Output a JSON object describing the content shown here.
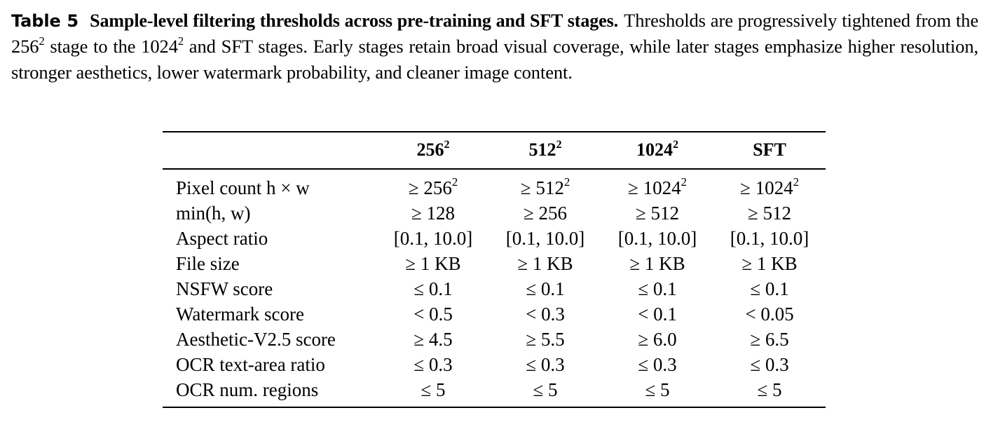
{
  "caption": {
    "label": "Table 5",
    "title": "Sample-level filtering thresholds across pre-training and SFT stages.",
    "text_1": "Thresholds are progressively tightened from the 256",
    "sup_1": "2",
    "text_2": " stage to the 1024",
    "sup_2": "2",
    "text_3": " and SFT stages. Early stages retain broad visual coverage, while later stages emphasize higher resolution, stronger aesthetics, lower watermark probability, and cleaner image content."
  },
  "table": {
    "headers": [
      {
        "base": "256",
        "sup": "2"
      },
      {
        "base": "512",
        "sup": "2"
      },
      {
        "base": "1024",
        "sup": "2"
      },
      {
        "base": "SFT",
        "sup": ""
      }
    ],
    "rows": [
      {
        "label": "Pixel count h × w",
        "cells": [
          {
            "base": "≥ 256",
            "sup": "2"
          },
          {
            "base": "≥ 512",
            "sup": "2"
          },
          {
            "base": "≥ 1024",
            "sup": "2"
          },
          {
            "base": "≥ 1024",
            "sup": "2"
          }
        ]
      },
      {
        "label": "min(h, w)",
        "cells": [
          {
            "base": "≥ 128",
            "sup": ""
          },
          {
            "base": "≥ 256",
            "sup": ""
          },
          {
            "base": "≥ 512",
            "sup": ""
          },
          {
            "base": "≥ 512",
            "sup": ""
          }
        ]
      },
      {
        "label": "Aspect ratio",
        "cells": [
          {
            "base": "[0.1, 10.0]",
            "sup": ""
          },
          {
            "base": "[0.1, 10.0]",
            "sup": ""
          },
          {
            "base": "[0.1, 10.0]",
            "sup": ""
          },
          {
            "base": "[0.1, 10.0]",
            "sup": ""
          }
        ]
      },
      {
        "label": "File size",
        "cells": [
          {
            "base": "≥ 1 KB",
            "sup": ""
          },
          {
            "base": "≥ 1 KB",
            "sup": ""
          },
          {
            "base": "≥ 1 KB",
            "sup": ""
          },
          {
            "base": "≥ 1 KB",
            "sup": ""
          }
        ]
      },
      {
        "label": "NSFW score",
        "cells": [
          {
            "base": "≤ 0.1",
            "sup": ""
          },
          {
            "base": "≤ 0.1",
            "sup": ""
          },
          {
            "base": "≤ 0.1",
            "sup": ""
          },
          {
            "base": "≤ 0.1",
            "sup": ""
          }
        ]
      },
      {
        "label": "Watermark score",
        "cells": [
          {
            "base": "< 0.5",
            "sup": ""
          },
          {
            "base": "< 0.3",
            "sup": ""
          },
          {
            "base": "< 0.1",
            "sup": ""
          },
          {
            "base": "< 0.05",
            "sup": ""
          }
        ]
      },
      {
        "label": "Aesthetic-V2.5 score",
        "cells": [
          {
            "base": "≥ 4.5",
            "sup": ""
          },
          {
            "base": "≥ 5.5",
            "sup": ""
          },
          {
            "base": "≥ 6.0",
            "sup": ""
          },
          {
            "base": "≥ 6.5",
            "sup": ""
          }
        ]
      },
      {
        "label": "OCR text-area ratio",
        "cells": [
          {
            "base": "≤ 0.3",
            "sup": ""
          },
          {
            "base": "≤ 0.3",
            "sup": ""
          },
          {
            "base": "≤ 0.3",
            "sup": ""
          },
          {
            "base": "≤ 0.3",
            "sup": ""
          }
        ]
      },
      {
        "label": "OCR num. regions",
        "cells": [
          {
            "base": "≤ 5",
            "sup": ""
          },
          {
            "base": "≤ 5",
            "sup": ""
          },
          {
            "base": "≤ 5",
            "sup": ""
          },
          {
            "base": "≤ 5",
            "sup": ""
          }
        ]
      }
    ]
  }
}
